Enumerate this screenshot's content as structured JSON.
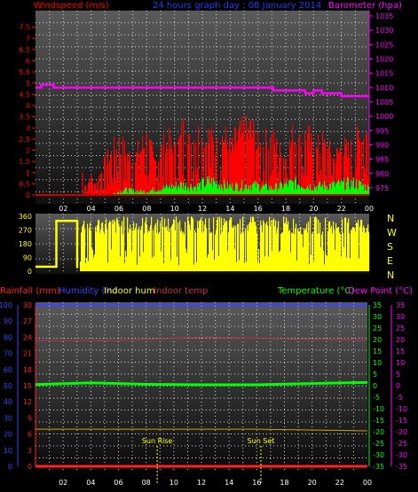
{
  "header": {
    "windspeed_label": "Windspeed (m/s)",
    "title": "24 hours graph day : 08 January 2014",
    "barometer_label": "Barometer (hpa)"
  },
  "time_ticks": [
    "02",
    "04",
    "06",
    "08",
    "10",
    "12",
    "14",
    "16",
    "18",
    "20",
    "22",
    "00"
  ],
  "bottom_time_ticks": [
    "02",
    "04",
    "06",
    "08",
    "10",
    "12",
    "14",
    "16",
    "18",
    "20",
    "22",
    "00"
  ],
  "sun": {
    "rise_label": "Sun Rise",
    "set_label": "Sun Set",
    "rise_hour": 8.8,
    "set_hour": 16.3
  },
  "colors": {
    "wind": "#ff0000",
    "gust_green": "#00ff00",
    "barometer": "#ff00ff",
    "direction": "#ffff00",
    "rainfall": "#ff2020",
    "humidity": "#4040ff",
    "indoor_hum": "#ffff00",
    "indoor_temp": "#c03050",
    "temperature": "#00ff00",
    "dewpoint": "#ff00ff"
  },
  "compass": [
    "N",
    "W",
    "S",
    "E",
    "N"
  ],
  "bottom_legend": {
    "rainfall": "Rainfall (mm)",
    "humidity": "Humidity (%)",
    "indoor_hum": "Indoor hum",
    "indoor_temp": "Indoor temp",
    "temperature": "Temperature (°C)",
    "dewpoint": "Dew Point (°C)"
  },
  "chart_data": [
    {
      "type": "bar",
      "panel": "wind-barometer",
      "x_range_hours": [
        0,
        24
      ],
      "wind_ylim": [
        0,
        8
      ],
      "wind_ticks": [
        "0",
        "0.5",
        "1",
        "1.5",
        "2",
        "2.5",
        "3",
        "3.5",
        "4",
        "4.5",
        "5",
        "5.5",
        "6",
        "6.5",
        "7",
        "7.5"
      ],
      "baro_ticks": [
        "975",
        "980",
        "985",
        "990",
        "995",
        "1000",
        "1005",
        "1010",
        "1015",
        "1020",
        "1025",
        "1030",
        "1035"
      ],
      "baro_ylim": [
        972.5,
        1035
      ],
      "barometer_series": [
        {
          "h": 0,
          "v": 1010
        },
        {
          "h": 0.4,
          "v": 1010
        },
        {
          "h": 0.4,
          "v": 1011
        },
        {
          "h": 1.3,
          "v": 1011
        },
        {
          "h": 1.3,
          "v": 1010
        },
        {
          "h": 14.6,
          "v": 1010
        },
        {
          "h": 14.6,
          "v": 1010
        },
        {
          "h": 17.1,
          "v": 1010
        },
        {
          "h": 17.1,
          "v": 1009
        },
        {
          "h": 19.4,
          "v": 1009
        },
        {
          "h": 19.4,
          "v": 1008
        },
        {
          "h": 20.0,
          "v": 1008
        },
        {
          "h": 20.0,
          "v": 1009
        },
        {
          "h": 20.6,
          "v": 1009
        },
        {
          "h": 20.6,
          "v": 1008
        },
        {
          "h": 22.0,
          "v": 1008
        },
        {
          "h": 22.0,
          "v": 1007
        },
        {
          "h": 24,
          "v": 1007
        }
      ],
      "wind_envelope": [
        {
          "h": 3.5,
          "v": 0.5
        },
        {
          "h": 4.0,
          "v": 1.0
        },
        {
          "h": 4.2,
          "v": 0.5
        },
        {
          "h": 5.0,
          "v": 1.8
        },
        {
          "h": 5.5,
          "v": 2.4
        },
        {
          "h": 6.0,
          "v": 2.8
        },
        {
          "h": 7.0,
          "v": 1.9
        },
        {
          "h": 7.5,
          "v": 2.6
        },
        {
          "h": 8.0,
          "v": 3.2
        },
        {
          "h": 8.5,
          "v": 1.8
        },
        {
          "h": 9.0,
          "v": 2.5
        },
        {
          "h": 9.5,
          "v": 3.0
        },
        {
          "h": 10.0,
          "v": 2.3
        },
        {
          "h": 10.6,
          "v": 3.6
        },
        {
          "h": 11.0,
          "v": 2.8
        },
        {
          "h": 11.5,
          "v": 3.5
        },
        {
          "h": 12.0,
          "v": 3.0
        },
        {
          "h": 12.4,
          "v": 3.3
        },
        {
          "h": 13.0,
          "v": 2.6
        },
        {
          "h": 13.5,
          "v": 3.4
        },
        {
          "h": 14.0,
          "v": 2.4
        },
        {
          "h": 14.5,
          "v": 3.3
        },
        {
          "h": 15.0,
          "v": 3.4
        },
        {
          "h": 15.5,
          "v": 3.7
        },
        {
          "h": 16.0,
          "v": 2.6
        },
        {
          "h": 16.5,
          "v": 2.9
        },
        {
          "h": 17.0,
          "v": 3.1
        },
        {
          "h": 17.5,
          "v": 2.4
        },
        {
          "h": 18.0,
          "v": 2.2
        },
        {
          "h": 18.6,
          "v": 3.5
        },
        {
          "h": 19.0,
          "v": 2.7
        },
        {
          "h": 19.5,
          "v": 3.4
        },
        {
          "h": 20.0,
          "v": 2.2
        },
        {
          "h": 20.5,
          "v": 2.9
        },
        {
          "h": 21.0,
          "v": 2.5
        },
        {
          "h": 21.5,
          "v": 2.0
        },
        {
          "h": 22.0,
          "v": 2.8
        },
        {
          "h": 22.5,
          "v": 2.3
        },
        {
          "h": 23.0,
          "v": 2.9
        },
        {
          "h": 23.5,
          "v": 3.3
        },
        {
          "h": 23.8,
          "v": 3.6
        },
        {
          "h": 24,
          "v": 2.6
        }
      ],
      "gust_green_envelope": [
        {
          "h": 5.6,
          "v": 0.1
        },
        {
          "h": 6.4,
          "v": 0.3
        },
        {
          "h": 7.8,
          "v": 0.2
        },
        {
          "h": 9.0,
          "v": 0.4
        },
        {
          "h": 10.5,
          "v": 0.6
        },
        {
          "h": 11.5,
          "v": 0.5
        },
        {
          "h": 12.5,
          "v": 0.8
        },
        {
          "h": 14.0,
          "v": 0.5
        },
        {
          "h": 15.5,
          "v": 0.6
        },
        {
          "h": 17.0,
          "v": 0.4
        },
        {
          "h": 18.5,
          "v": 0.7
        },
        {
          "h": 20.0,
          "v": 0.5
        },
        {
          "h": 21.5,
          "v": 0.6
        },
        {
          "h": 23.0,
          "v": 0.7
        },
        {
          "h": 24,
          "v": 0.4
        }
      ]
    },
    {
      "type": "bar",
      "panel": "wind-direction",
      "ylim": [
        0,
        360
      ],
      "ticks": [
        "0",
        "90",
        "180",
        "270",
        "360"
      ],
      "direction_profile": [
        {
          "h": 0,
          "v": 30
        },
        {
          "h": 1.5,
          "v": 30
        },
        {
          "h": 1.5,
          "v": 330
        },
        {
          "h": 3.0,
          "v": 330
        },
        {
          "h": 3.0,
          "v": 0
        },
        {
          "h": 3.2,
          "v": 360
        },
        {
          "h": 24,
          "v": 330
        }
      ]
    },
    {
      "type": "line",
      "panel": "temperature-humidity",
      "left_rain_ticks": [
        "0",
        "10",
        "20",
        "30",
        "40",
        "50",
        "60",
        "70",
        "80",
        "90",
        "100"
      ],
      "left_inner_ticks": [
        "0",
        "3",
        "6",
        "9",
        "12",
        "15",
        "18",
        "21",
        "24",
        "27",
        "30"
      ],
      "right_temp_ticks": [
        "35",
        "30",
        "25",
        "20",
        "15",
        "10",
        "5",
        "0",
        "-5",
        "-10",
        "-15",
        "-20",
        "-25",
        "-30",
        "-35"
      ],
      "right_dew_ticks": [
        "35",
        "30",
        "25",
        "20",
        "15",
        "10",
        "5",
        "0",
        "-5",
        "-10",
        "-15",
        "-20",
        "-25",
        "-30",
        "-35"
      ],
      "rainfall_mm": 0,
      "humidity_pct": 100,
      "temperature_c": [
        {
          "h": 0,
          "v": 0.5
        },
        {
          "h": 4,
          "v": 1.2
        },
        {
          "h": 8,
          "v": 0.6
        },
        {
          "h": 12,
          "v": 0.4
        },
        {
          "h": 16,
          "v": 0.4
        },
        {
          "h": 20,
          "v": 0.9
        },
        {
          "h": 24,
          "v": 1.4
        }
      ],
      "indoor_temp_series": [
        {
          "h": 0,
          "v": 78
        },
        {
          "h": 6,
          "v": 78
        },
        {
          "h": 12,
          "v": 80
        },
        {
          "h": 18,
          "v": 79
        },
        {
          "h": 24,
          "v": 78
        }
      ],
      "indoor_hum_series": [
        {
          "h": 0,
          "v": 23
        },
        {
          "h": 8,
          "v": 23
        },
        {
          "h": 16,
          "v": 23
        },
        {
          "h": 24,
          "v": 22
        }
      ]
    }
  ]
}
